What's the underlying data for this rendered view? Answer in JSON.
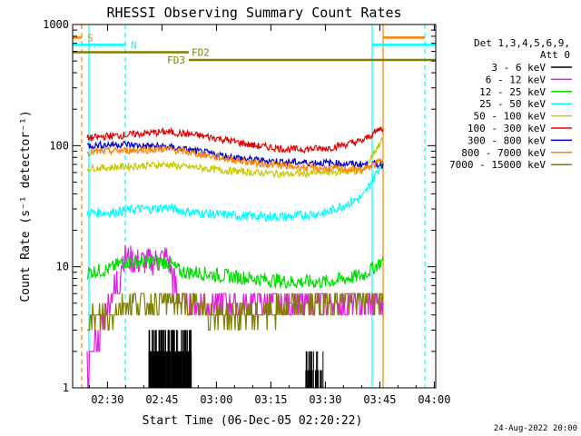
{
  "chart_data": {
    "type": "line",
    "title": "RHESSI Observing Summary Count Rates",
    "xlabel": "Start Time (06-Dec-05 02:20:22)",
    "ylabel": "Count Rate (s⁻¹ detector⁻¹)",
    "yscale": "log",
    "ylim": [
      1,
      1000
    ],
    "xlim_minutes": [
      0,
      100
    ],
    "x_ticks": [
      {
        "label": "02:30",
        "min": 9.6
      },
      {
        "label": "02:45",
        "min": 24.6
      },
      {
        "label": "03:00",
        "min": 39.6
      },
      {
        "label": "03:15",
        "min": 54.6
      },
      {
        "label": "03:30",
        "min": 69.6
      },
      {
        "label": "03:45",
        "min": 84.6
      },
      {
        "label": "04:00",
        "min": 99.6
      }
    ],
    "y_ticks": [
      {
        "label": "1",
        "v": 1
      },
      {
        "label": "10",
        "v": 10
      },
      {
        "label": "100",
        "v": 100
      },
      {
        "label": "1000",
        "v": 1000
      }
    ],
    "legend_title": [
      "Det 1,3,4,5,6,9,",
      "Att 0"
    ],
    "series": [
      {
        "name": "3 - 6 keV",
        "color": "#000000",
        "t": [
          19,
          23,
          27,
          31,
          33,
          64,
          67
        ],
        "v": [
          1.5,
          1.8,
          1.7,
          1.6,
          1.4,
          1.5,
          1.8
        ]
      },
      {
        "name": "6 - 12 keV",
        "color": "#e020e0",
        "t": [
          4,
          10,
          14,
          18,
          22,
          26,
          30,
          34,
          40,
          50,
          60,
          70,
          80,
          85
        ],
        "v": [
          1.5,
          5.0,
          12,
          11,
          11,
          12,
          5.0,
          5.0,
          5.0,
          5.0,
          5.0,
          5.0,
          5.0,
          5.0
        ]
      },
      {
        "name": "12 - 25 keV",
        "color": "#00e000",
        "t": [
          4,
          10,
          14,
          18,
          22,
          26,
          30,
          34,
          40,
          50,
          60,
          70,
          80,
          85
        ],
        "v": [
          9.0,
          9.5,
          11,
          11,
          11,
          11,
          9.0,
          9.0,
          8.5,
          8.0,
          7.5,
          7.5,
          8.5,
          11
        ]
      },
      {
        "name": "25 - 50 keV",
        "color": "#00ffff",
        "t": [
          4,
          10,
          14,
          18,
          22,
          26,
          30,
          34,
          40,
          50,
          60,
          70,
          80,
          85
        ],
        "v": [
          28,
          28,
          29,
          30,
          30,
          31,
          29,
          28,
          27,
          26,
          26,
          28,
          38,
          70
        ]
      },
      {
        "name": "50 - 100 keV",
        "color": "#c8c800",
        "t": [
          4,
          10,
          14,
          18,
          22,
          26,
          30,
          34,
          40,
          50,
          60,
          70,
          80,
          85
        ],
        "v": [
          65,
          66,
          67,
          68,
          69,
          70,
          67,
          66,
          63,
          60,
          58,
          60,
          62,
          110
        ]
      },
      {
        "name": "100 - 300 keV",
        "color": "#e00000",
        "t": [
          4,
          10,
          14,
          18,
          22,
          26,
          30,
          34,
          40,
          50,
          60,
          70,
          80,
          85
        ],
        "v": [
          115,
          120,
          122,
          125,
          128,
          130,
          126,
          122,
          115,
          100,
          93,
          95,
          110,
          140
        ]
      },
      {
        "name": "300 - 800 keV",
        "color": "#0000cc",
        "t": [
          4,
          10,
          14,
          18,
          22,
          26,
          30,
          34,
          40,
          50,
          60,
          70,
          80,
          85
        ],
        "v": [
          100,
          102,
          103,
          100,
          99,
          98,
          94,
          90,
          84,
          76,
          73,
          72,
          70,
          70
        ]
      },
      {
        "name": "800 - 7000 keV",
        "color": "#ff8000",
        "t": [
          4,
          10,
          14,
          18,
          22,
          26,
          30,
          34,
          40,
          50,
          60,
          70,
          80,
          85
        ],
        "v": [
          88,
          90,
          91,
          92,
          93,
          94,
          90,
          86,
          80,
          72,
          67,
          65,
          63,
          75
        ]
      },
      {
        "name": "7000 - 15000 keV",
        "color": "#808000",
        "t": [
          4,
          10,
          14,
          18,
          22,
          26,
          30,
          34,
          40,
          50,
          60,
          70,
          80,
          85
        ],
        "v": [
          3.5,
          4.0,
          5.0,
          5.0,
          5.0,
          5.5,
          5.0,
          4.5,
          4.0,
          4.0,
          4.5,
          5.0,
          5.5,
          5.5
        ]
      }
    ],
    "event_lines": [
      {
        "label": "S",
        "color": "#ff8000",
        "style": "dashed",
        "t": 2.5
      },
      {
        "label": "N",
        "color": "#00ffff",
        "style": "dashed",
        "t": 14.5
      },
      {
        "color": "#00ffff",
        "style": "solid",
        "t": 4.5
      },
      {
        "color": "#00ffff",
        "style": "solid",
        "t": 82.5
      },
      {
        "color": "#ff8000",
        "style": "solid",
        "t": 85.5
      },
      {
        "color": "#00ffff",
        "style": "dashed",
        "t": 97
      }
    ],
    "flag_bars": [
      {
        "label": "S",
        "color": "#ff8000",
        "t0": 0,
        "t1": 2.5,
        "v": 780
      },
      {
        "label": "",
        "color": "#ff8000",
        "t0": 85.5,
        "t1": 97,
        "v": 780
      },
      {
        "label": "N",
        "color": "#00ffff",
        "t0": 0,
        "t1": 14.5,
        "v": 680
      },
      {
        "label": "",
        "color": "#00ffff",
        "t0": 82.5,
        "t1": 100,
        "v": 680
      },
      {
        "label": "FD2",
        "color": "#808000",
        "t0": 0,
        "t1": 32,
        "v": 590
      },
      {
        "label": "FD3",
        "color": "#808000",
        "t0": 32,
        "t1": 100,
        "v": 510
      }
    ],
    "timestamp": "24-Aug-2022 20:00"
  }
}
